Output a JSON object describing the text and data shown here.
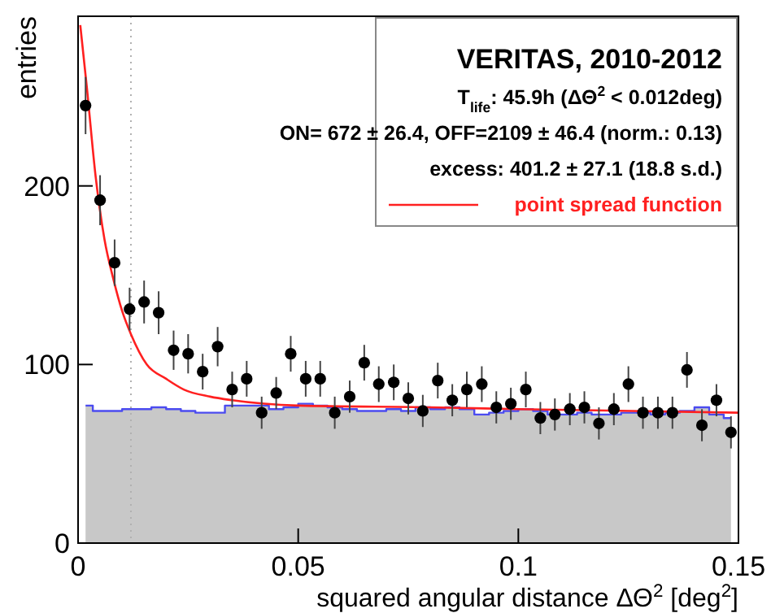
{
  "chart_data": {
    "type": "scatter",
    "legend_title": "VERITAS, 2010-2012",
    "annotations": [
      "T$_{life}$: 45.9h (ΔΘ$^{2}$ < 0.012deg)",
      "ON= 672 ± 26.4, OFF=2109 ± 46.4 (norm.: 0.13)",
      "excess: 401.2 ± 27.1 (18.8 s.d.)"
    ],
    "xlabel": "squared angular distance ΔΘ$^{2}$ [deg$^{2}$]",
    "ylabel": "entries",
    "x": [
      0.0017,
      0.005,
      0.0083,
      0.0117,
      0.015,
      0.0183,
      0.0217,
      0.025,
      0.0283,
      0.0317,
      0.035,
      0.0383,
      0.0417,
      0.045,
      0.0483,
      0.0517,
      0.055,
      0.0583,
      0.0617,
      0.065,
      0.0683,
      0.0717,
      0.075,
      0.0783,
      0.0817,
      0.085,
      0.0883,
      0.0917,
      0.095,
      0.0983,
      0.1017,
      0.105,
      0.1083,
      0.1117,
      0.115,
      0.1183,
      0.1217,
      0.125,
      0.1283,
      0.1317,
      0.135,
      0.1383,
      0.1417,
      0.145,
      0.1483
    ],
    "series": [
      {
        "type": "area",
        "color": "#4b4bf0",
        "values": [
          77,
          74,
          74,
          75,
          75,
          76,
          75,
          74,
          73,
          73,
          77,
          77,
          77,
          75,
          76,
          78,
          77,
          76,
          75,
          74,
          74,
          75,
          74,
          76,
          75,
          76,
          75,
          72,
          73,
          74,
          75,
          74,
          72,
          72,
          73,
          72,
          72,
          73,
          73,
          72,
          73,
          74,
          76,
          72,
          70
        ]
      },
      {
        "type": "line",
        "name": "point spread function",
        "color": "#ff2020",
        "x": [
          0.0005,
          0.002,
          0.004,
          0.006,
          0.008,
          0.01,
          0.012,
          0.0156,
          0.02,
          0.024,
          0.03,
          0.035,
          0.05,
          0.08,
          0.1,
          0.15
        ],
        "values": [
          290,
          255,
          205,
          170,
          148,
          130,
          117,
          100,
          92,
          86,
          82,
          80,
          77,
          76,
          75,
          73
        ]
      },
      {
        "color": "#000000",
        "marker": "circle",
        "values": [
          245,
          192,
          157,
          131,
          135,
          129,
          108,
          106,
          96,
          110,
          86,
          92,
          73,
          84,
          106,
          92,
          92,
          73,
          82,
          101,
          89,
          90,
          81,
          74,
          91,
          80,
          86,
          89,
          76,
          78,
          86,
          70,
          72,
          75,
          76,
          67,
          75,
          89,
          73,
          73,
          73,
          97,
          66,
          80,
          62
        ],
        "errors": [
          16,
          14,
          13,
          12,
          12,
          12,
          11,
          11,
          10,
          11,
          10,
          10,
          9,
          9,
          10,
          10,
          10,
          9,
          9,
          10,
          10,
          10,
          9,
          9,
          10,
          9,
          10,
          10,
          9,
          9,
          10,
          9,
          9,
          9,
          9,
          9,
          9,
          10,
          9,
          9,
          9,
          10,
          9,
          9,
          9
        ]
      }
    ],
    "xlim": [
      0,
      0.15
    ],
    "xticks": [
      0,
      0.05,
      0.1,
      0.15
    ],
    "ylim": [
      0,
      295
    ],
    "yticks": [
      0,
      100,
      200
    ],
    "ref_lines": [
      {
        "axis": "x",
        "value": 0.012,
        "color": "#b0b0b0",
        "line_style": "dotted"
      }
    ],
    "legend": "top right",
    "grid": false
  }
}
